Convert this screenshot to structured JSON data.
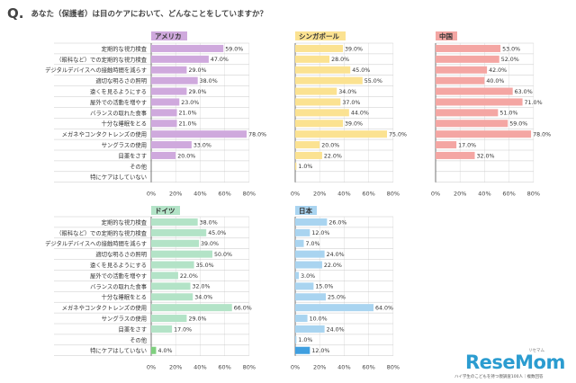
{
  "header": {
    "q_mark": "Q.",
    "question": "あなた（保護者）は目のケアにおいて、どんなことをしていますか？"
  },
  "footer": {
    "logo": "ReseMom",
    "logo_sub": "リセマム",
    "source": "ハイ学生のこどもを持つ親調査100人｜複数回答"
  },
  "chart_data": [
    {
      "type": "bar",
      "orientation": "horizontal",
      "title": "アメリカ",
      "color": "#cfa9dd",
      "categories": [
        "定期的な視力検査",
        "（眼科など）での定期的な視力検査",
        "デジタルデバイスへの接触時間を減らす",
        "適切な明るさの照明",
        "遠くを見るようにする",
        "屋外での活動を増やす",
        "バランスの取れた食事",
        "十分な睡眠をとる",
        "メガネやコンタクトレンズの使用",
        "サングラスの使用",
        "目薬をさす",
        "その他",
        "特にケアはしていない"
      ],
      "values": [
        59.0,
        47.0,
        29.0,
        38.0,
        29.0,
        23.0,
        21.0,
        21.0,
        78.0,
        33.0,
        20.0,
        null,
        null
      ],
      "xlim": [
        0,
        80
      ],
      "xticks": [
        "0%",
        "20%",
        "40%",
        "60%",
        "80%"
      ]
    },
    {
      "type": "bar",
      "orientation": "horizontal",
      "title": "シンガポール",
      "color": "#fbe291",
      "categories": [
        "定期的な視力検査",
        "（眼科など）での定期的な視力検査",
        "デジタルデバイスへの接触時間を減らす",
        "適切な明るさの照明",
        "遠くを見るようにする",
        "屋外での活動を増やす",
        "バランスの取れた食事",
        "十分な睡眠をとる",
        "メガネやコンタクトレンズの使用",
        "サングラスの使用",
        "目薬をさす",
        "その他",
        "特にケアはしていない"
      ],
      "values": [
        39.0,
        28.0,
        45.0,
        55.0,
        34.0,
        37.0,
        44.0,
        39.0,
        75.0,
        20.0,
        22.0,
        1.0,
        null
      ],
      "xlim": [
        0,
        80
      ],
      "xticks": [
        "0%",
        "20%",
        "40%",
        "60%",
        "80%"
      ]
    },
    {
      "type": "bar",
      "orientation": "horizontal",
      "title": "中国",
      "color": "#f4a6a3",
      "categories": [
        "定期的な視力検査",
        "（眼科など）での定期的な視力検査",
        "デジタルデバイスへの接触時間を減らす",
        "適切な明るさの照明",
        "遠くを見るようにする",
        "屋外での活動を増やす",
        "バランスの取れた食事",
        "十分な睡眠をとる",
        "メガネやコンタクトレンズの使用",
        "サングラスの使用",
        "目薬をさす",
        "その他",
        "特にケアはしていない"
      ],
      "values": [
        53.0,
        52.0,
        42.0,
        40.0,
        63.0,
        71.0,
        51.0,
        59.0,
        78.0,
        17.0,
        32.0,
        null,
        null
      ],
      "xlim": [
        0,
        80
      ],
      "xticks": [
        "0%",
        "20%",
        "40%",
        "60%",
        "80%"
      ]
    },
    {
      "type": "bar",
      "orientation": "horizontal",
      "title": "ドイツ",
      "color": "#b3e3c7",
      "categories": [
        "定期的な視力検査",
        "（眼科など）での定期的な視力検査",
        "デジタルデバイスへの接触時間を減らす",
        "適切な明るさの照明",
        "遠くを見るようにする",
        "屋外での活動を増やす",
        "バランスの取れた食事",
        "十分な睡眠をとる",
        "メガネやコンタクトレンズの使用",
        "サングラスの使用",
        "目薬をさす",
        "その他",
        "特にケアはしていない"
      ],
      "values": [
        38.0,
        45.0,
        39.0,
        50.0,
        35.0,
        22.0,
        32.0,
        34.0,
        66.0,
        29.0,
        17.0,
        null,
        4.0
      ],
      "highlight_color": "#7fd07f",
      "xlim": [
        0,
        80
      ],
      "xticks": [
        "0%",
        "20%",
        "40%",
        "60%",
        "80%"
      ]
    },
    {
      "type": "bar",
      "orientation": "horizontal",
      "title": "日本",
      "color": "#a9d4f0",
      "categories": [
        "定期的な視力検査",
        "（眼科など）での定期的な視力検査",
        "デジタルデバイスへの接触時間を減らす",
        "適切な明るさの照明",
        "遠くを見るようにする",
        "屋外での活動を増やす",
        "バランスの取れた食事",
        "十分な睡眠をとる",
        "メガネやコンタクトレンズの使用",
        "サングラスの使用",
        "目薬をさす",
        "その他",
        "特にケアはしていない"
      ],
      "values": [
        26.0,
        12.0,
        7.0,
        24.0,
        22.0,
        3.0,
        15.0,
        25.0,
        64.0,
        10.0,
        24.0,
        1.0,
        12.0
      ],
      "highlight_color": "#3f9fe0",
      "xlim": [
        0,
        80
      ],
      "xticks": [
        "0%",
        "20%",
        "40%",
        "60%",
        "80%"
      ]
    }
  ]
}
